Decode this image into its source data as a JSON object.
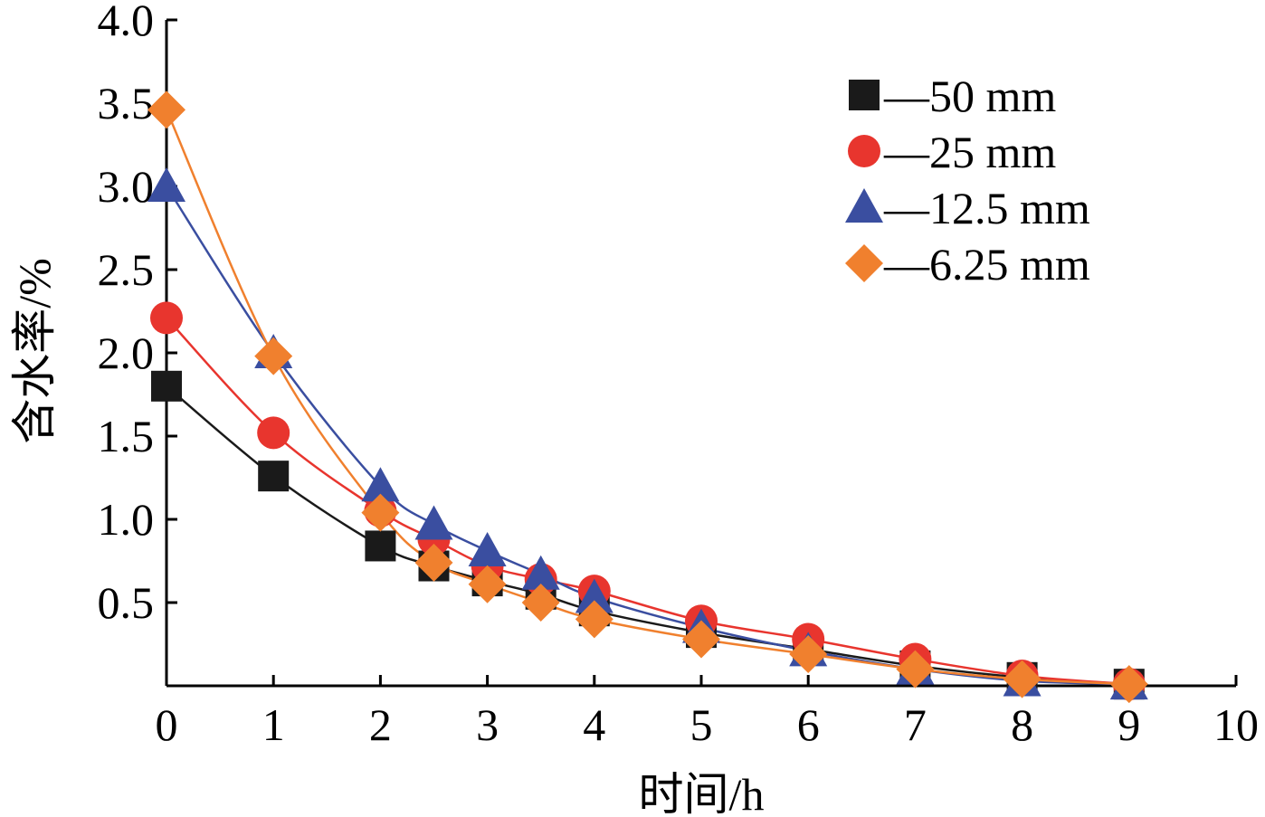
{
  "chart_data": {
    "type": "line",
    "title": "",
    "xlabel": "时间/h",
    "ylabel": "含水率/%",
    "xlim": [
      0,
      10
    ],
    "ylim": [
      0,
      4.0
    ],
    "xticks": [
      0,
      1,
      2,
      3,
      4,
      5,
      6,
      7,
      8,
      9,
      10
    ],
    "xtick_labels": [
      "0",
      "1",
      "2",
      "3",
      "4",
      "5",
      "6",
      "7",
      "8",
      "9",
      "10"
    ],
    "yticks": [
      0.5,
      1.0,
      1.5,
      2.0,
      2.5,
      3.0,
      3.5,
      4.0
    ],
    "ytick_labels": [
      "0.5",
      "1.0",
      "1.5",
      "2.0",
      "2.5",
      "3.0",
      "3.5",
      "4.0"
    ],
    "grid": false,
    "legend_position": "top-right",
    "x": [
      0,
      1,
      2,
      2.5,
      3,
      3.5,
      4,
      5,
      6,
      7,
      8,
      9
    ],
    "series": [
      {
        "name": "—50 mm",
        "marker": "square",
        "color": "#1a1a1a",
        "values": [
          1.8,
          1.26,
          0.84,
          0.72,
          0.63,
          0.55,
          0.45,
          0.32,
          0.22,
          0.12,
          0.05,
          0.01
        ]
      },
      {
        "name": "—25 mm",
        "marker": "circle",
        "color": "#e8352e",
        "values": [
          2.21,
          1.52,
          1.05,
          0.88,
          0.72,
          0.64,
          0.57,
          0.39,
          0.28,
          0.16,
          0.06,
          0.01
        ]
      },
      {
        "name": "—12.5 mm",
        "marker": "triangle",
        "color": "#3a4ea0",
        "values": [
          3.0,
          2.0,
          1.2,
          0.97,
          0.81,
          0.67,
          0.53,
          0.35,
          0.21,
          0.1,
          0.03,
          0.01
        ]
      },
      {
        "name": "—6.25 mm",
        "marker": "diamond",
        "color": "#f0802e",
        "values": [
          3.46,
          1.98,
          1.04,
          0.74,
          0.61,
          0.5,
          0.4,
          0.28,
          0.19,
          0.1,
          0.04,
          0.01
        ]
      }
    ]
  }
}
